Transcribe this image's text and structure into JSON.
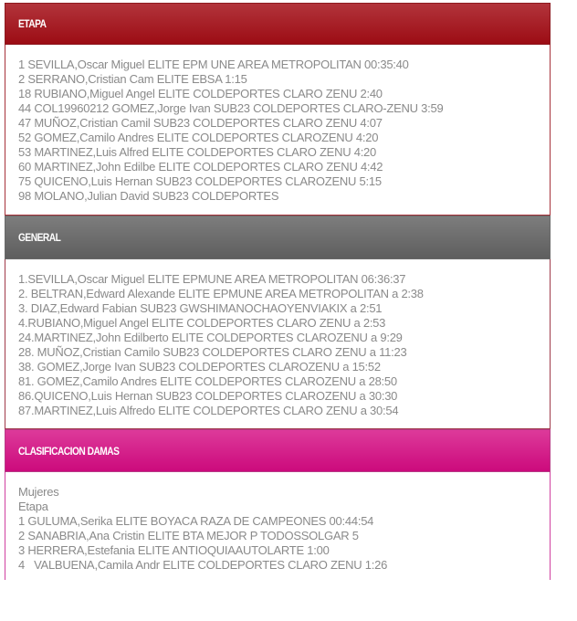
{
  "panels": [
    {
      "title": "ETAPA",
      "header_color": "#a3141c",
      "lines": [
        "1 SEVILLA,Oscar Miguel ELITE EPM UNE AREA METROPOLITAN 00:35:40",
        "2 SERRANO,Cristian Cam ELITE EBSA 1:15",
        "18 RUBIANO,Miguel Angel ELITE COLDEPORTES CLARO ZENU 2:40",
        "44 COL19960212 GOMEZ,Jorge Ivan SUB23 COLDEPORTES CLARO-ZENU 3:59",
        "47 MUÑOZ,Cristian Camil SUB23 COLDEPORTES CLARO ZENU 4:07",
        "52 GOMEZ,Camilo Andres ELITE COLDEPORTES CLAROZENU 4:20",
        "53 MARTINEZ,Luis Alfred ELITE COLDEPORTES CLARO ZENU 4:20",
        "60 MARTINEZ,John Edilbe ELITE COLDEPORTES CLARO ZENU 4:42",
        "75 QUICENO,Luis Hernan SUB23 COLDEPORTES CLAROZENU 5:15",
        "98 MOLANO,Julian David SUB23 COLDEPORTES"
      ]
    },
    {
      "title": "GENERAL",
      "header_color": "#666666",
      "lines": [
        "1.SEVILLA,Oscar Miguel ELITE EPMUNE AREA METROPOLITAN 06:36:37",
        "2. BELTRAN,Edward Alexande ELITE EPMUNE AREA METROPOLITAN a 2:38",
        "3. DIAZ,Edward Fabian SUB23 GWSHIMANOCHAOYENVIAKIX a 2:51",
        "4.RUBIANO,Miguel Angel ELITE COLDEPORTES CLARO ZENU a 2:53",
        "24.MARTINEZ,John Edilberto ELITE COLDEPORTES CLAROZENU a 9:29",
        "28. MUÑOZ,Cristian Camilo SUB23 COLDEPORTES CLARO ZENU a 11:23",
        "38. GOMEZ,Jorge Ivan SUB23 COLDEPORTES CLAROZENU a 15:52",
        "81. GOMEZ,Camilo Andres ELITE COLDEPORTES CLAROZENU a 28:50",
        "86.QUICENO,Luis Hernan SUB23 COLDEPORTES CLAROZENU a 30:30",
        "87.MARTINEZ,Luis Alfredo ELITE COLDEPORTES CLARO ZENU a 30:54"
      ]
    },
    {
      "title": "CLASIFICACION DAMAS",
      "header_color": "#d4137f",
      "lines": [
        "Mujeres",
        "Etapa",
        "1 GULUMA,Serika ELITE BOYACA RAZA DE CAMPEONES 00:44:54",
        "2 SANABRIA,Ana Cristin ELITE BTA MEJOR P TODOSSOLGAR 5",
        "3 HERRERA,Estefania ELITE ANTIOQUIAAUTOLARTE 1:00",
        "4   VALBUENA,Camila Andr ELITE COLDEPORTES CLARO ZENU 1:26"
      ]
    }
  ]
}
